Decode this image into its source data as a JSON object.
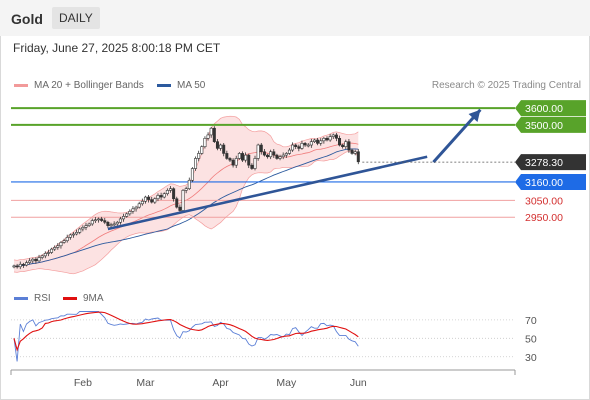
{
  "header": {
    "title": "Gold",
    "period": "DAILY"
  },
  "timestamp": "Friday, June 27, 2025 8:00:18 PM CET",
  "credit": "Research © 2025 Trading Central",
  "colors": {
    "bollinger": "#f07b7b",
    "ma50": "#2c5a9e",
    "support_line": "#2f5597",
    "resistance_green": "#58a32a",
    "pivot_blue": "#1e6be6",
    "price_box": "#333333",
    "rsi": "#5b7fd6",
    "rsi_ma": "#e01010"
  },
  "chart_data": [
    {
      "type": "candlestick",
      "legend": [
        {
          "name": "MA 20 + Bollinger Bands"
        },
        {
          "name": "MA 50"
        }
      ],
      "x_axis": {
        "ticks": [
          "Feb",
          "Mar",
          "Apr",
          "May",
          "Jun"
        ]
      },
      "price_range": [
        2600,
        3660
      ],
      "current_price": "3278.30",
      "levels": [
        {
          "value": 3600,
          "label": "3600.00",
          "kind": "resistance",
          "box": true
        },
        {
          "value": 3500,
          "label": "3500.00",
          "kind": "resistance",
          "box": true
        },
        {
          "value": 3160,
          "label": "3160.00",
          "kind": "pivot",
          "box": true
        },
        {
          "value": 3050,
          "label": "3050.00",
          "kind": "support",
          "box": false
        },
        {
          "value": 2950,
          "label": "2950.00",
          "kind": "support",
          "box": false
        }
      ],
      "trendline": {
        "from": {
          "day": 30,
          "price": 2880
        },
        "to": {
          "day": 132,
          "price": 3310
        }
      },
      "arrow": {
        "from": {
          "day": 134,
          "price": 3278
        },
        "to": {
          "day": 149,
          "price": 3590
        }
      },
      "close_series": [
        2660,
        2655,
        2670,
        2665,
        2680,
        2690,
        2700,
        2690,
        2710,
        2720,
        2735,
        2740,
        2760,
        2770,
        2780,
        2800,
        2810,
        2830,
        2845,
        2850,
        2860,
        2880,
        2890,
        2900,
        2910,
        2930,
        2935,
        2940,
        2930,
        2920,
        2900,
        2905,
        2910,
        2920,
        2940,
        2955,
        2970,
        2985,
        3000,
        3010,
        3030,
        3045,
        3070,
        3055,
        3040,
        3060,
        3080,
        3070,
        3090,
        3110,
        3120,
        3060,
        3010,
        2990,
        3110,
        3120,
        3170,
        3240,
        3300,
        3330,
        3370,
        3420,
        3440,
        3480,
        3400,
        3360,
        3380,
        3330,
        3300,
        3290,
        3260,
        3300,
        3330,
        3290,
        3320,
        3260,
        3240,
        3300,
        3380,
        3340,
        3320,
        3310,
        3340,
        3320,
        3300,
        3310,
        3320,
        3330,
        3350,
        3380,
        3370,
        3360,
        3390,
        3380,
        3380,
        3400,
        3410,
        3390,
        3405,
        3420,
        3410,
        3430,
        3440,
        3420,
        3380,
        3370,
        3400,
        3350,
        3330,
        3340,
        3280
      ],
      "day_of_series_start": 0,
      "rsi": {
        "legend": [
          {
            "name": "RSI"
          },
          {
            "name": "9MA"
          }
        ],
        "range": [
          20,
          85
        ],
        "ticks": [
          70,
          50,
          30
        ]
      }
    }
  ]
}
